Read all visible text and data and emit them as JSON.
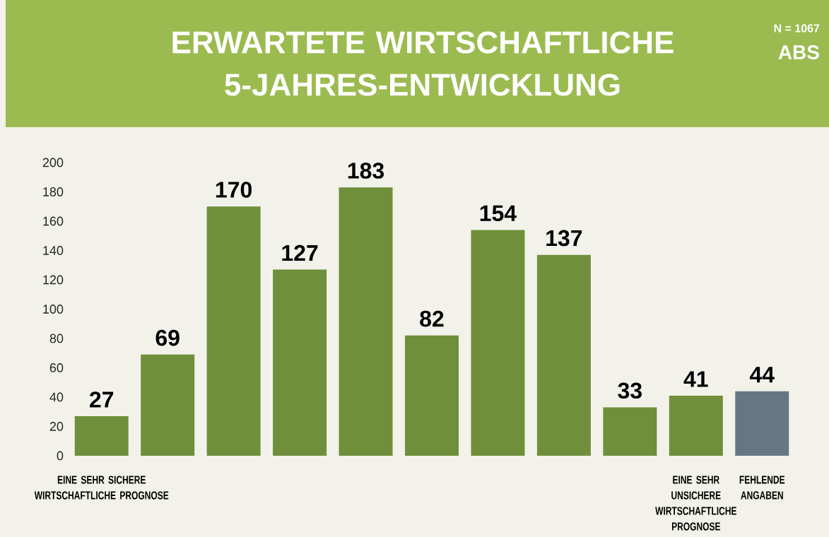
{
  "chart_data": {
    "type": "bar",
    "title": "ERWARTETE WIRTSCHAFTLICHE 5-JAHRES-ENTWICKLUNG",
    "annotations": [
      "N = 1067",
      "ABS"
    ],
    "categories": [
      "EINE SEHR SICHERE WIRTSCHAFTLICHE PROGNOSE",
      null,
      null,
      null,
      null,
      null,
      null,
      null,
      null,
      "EINE SEHR UNSICHERE WIRTSCHAFTLICHE PROGNOSE",
      "FEHLENDE ANGABEN"
    ],
    "values": [
      27,
      69,
      170,
      127,
      183,
      82,
      154,
      137,
      33,
      41,
      44
    ],
    "colors": [
      "#6f8f3a",
      "#6f8f3a",
      "#6f8f3a",
      "#6f8f3a",
      "#6f8f3a",
      "#6f8f3a",
      "#6f8f3a",
      "#6f8f3a",
      "#6f8f3a",
      "#6f8f3a",
      "#657785"
    ],
    "ylim": [
      0,
      200
    ],
    "yticks": [
      0,
      20,
      40,
      60,
      80,
      100,
      120,
      140,
      160,
      180,
      200
    ],
    "data_labels": true,
    "grid": false
  }
}
